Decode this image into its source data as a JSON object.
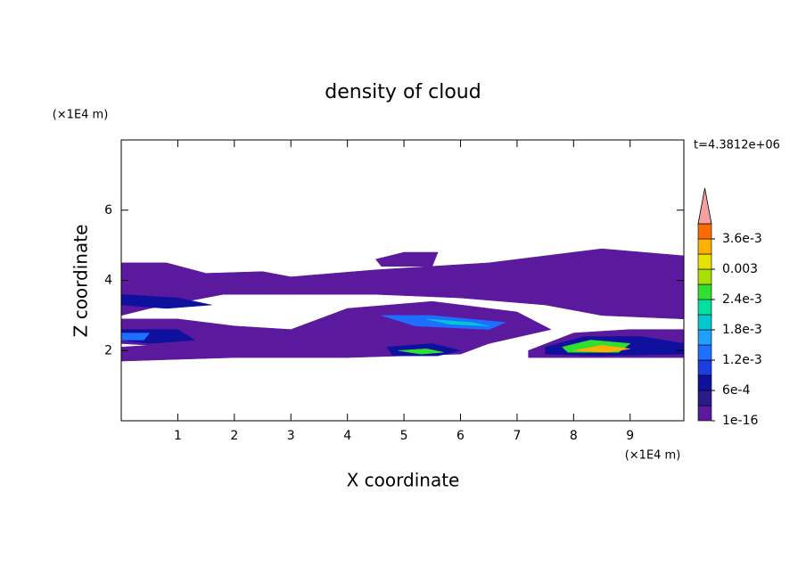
{
  "chart_data": {
    "type": "contour",
    "title": "density of cloud",
    "xlabel": "X coordinate",
    "ylabel": "Z coordinate",
    "xunit": "(×1E4 m)",
    "yunit": "(×1E4 m)",
    "time": "t=4.3812e+06",
    "xlim": [
      0,
      9.95
    ],
    "ylim": [
      0,
      8
    ],
    "xticks": [
      1,
      2,
      3,
      4,
      5,
      6,
      7,
      8,
      9
    ],
    "yticks": [
      2,
      4,
      6
    ],
    "levels": [
      1e-16,
      0.0003,
      0.0006,
      0.0009,
      0.0012,
      0.0015,
      0.0018,
      0.0021,
      0.0024,
      0.0027,
      0.003,
      0.0033,
      0.0036,
      0.0039
    ],
    "colors": [
      "#5b1a9e",
      "#2a1a8c",
      "#10109e",
      "#1a3ce0",
      "#1e6eff",
      "#1ea0ff",
      "#00c8d0",
      "#00e0a0",
      "#30e030",
      "#a8e000",
      "#e8e000",
      "#ffb000",
      "#ff6a00",
      "#f02010"
    ],
    "extend_color": "#f4a0a0",
    "cticks": [
      1e-16,
      {
        "value": 0.0006,
        "label": "6e-4"
      },
      {
        "value": 0.0012,
        "label": "1.2e-3"
      },
      {
        "value": 0.0018,
        "label": "1.8e-3"
      },
      {
        "value": 0.0024,
        "label": "2.4e-3"
      },
      0.003,
      {
        "value": 0.0036,
        "label": "3.6e-3"
      }
    ],
    "regions": [
      {
        "level": 1e-16,
        "x": [
          0,
          0.8,
          1.5,
          2.5,
          3.0,
          4.5,
          6.5,
          7.5,
          8.5,
          9.95,
          9.95,
          8.5,
          7.5,
          6,
          4.5,
          3,
          1.8,
          0.5,
          0
        ],
        "y": [
          4.5,
          4.5,
          4.2,
          4.25,
          4.1,
          4.3,
          4.5,
          4.7,
          4.9,
          4.7,
          2.9,
          3.0,
          3.3,
          3.5,
          3.6,
          3.6,
          3.6,
          3.2,
          3.0
        ]
      },
      {
        "level": 1e-16,
        "x": [
          4.5,
          5.0,
          5.6,
          5.5,
          4.6
        ],
        "y": [
          4.6,
          4.8,
          4.8,
          4.4,
          4.4
        ]
      },
      {
        "level": 1e-16,
        "x": [
          0,
          1,
          2,
          3,
          4,
          5.5,
          7,
          7.6,
          6.5,
          5,
          3,
          2,
          1,
          0
        ],
        "y": [
          2.9,
          2.9,
          2.7,
          2.6,
          3.2,
          3.4,
          3.1,
          2.6,
          2.2,
          2.3,
          2.2,
          2.0,
          2.1,
          2.2
        ]
      },
      {
        "level": 1e-16,
        "x": [
          0,
          1,
          2.5,
          4,
          5,
          6.5,
          6,
          4,
          2,
          0
        ],
        "y": [
          2.1,
          2.2,
          2.3,
          2.3,
          2.3,
          2.2,
          1.9,
          1.8,
          1.8,
          1.7
        ]
      },
      {
        "level": 1e-16,
        "x": [
          7.2,
          8,
          9,
          9.95,
          9.95,
          8.5,
          7.2
        ],
        "y": [
          2.0,
          2.5,
          2.6,
          2.6,
          1.8,
          1.8,
          1.8
        ]
      },
      {
        "level": 0.0006,
        "x": [
          0,
          1.0,
          1.6,
          0.8,
          0
        ],
        "y": [
          3.6,
          3.5,
          3.3,
          3.2,
          3.3
        ]
      },
      {
        "level": 0.0006,
        "x": [
          0,
          1.0,
          1.3,
          0.5,
          0
        ],
        "y": [
          2.6,
          2.6,
          2.3,
          2.2,
          2.3
        ]
      },
      {
        "level": 0.0012,
        "x": [
          0,
          0.5,
          0.4,
          0
        ],
        "y": [
          2.5,
          2.5,
          2.3,
          2.3
        ]
      },
      {
        "level": 0.0012,
        "x": [
          4.6,
          5.5,
          6.8,
          6.5,
          5.2
        ],
        "y": [
          3.0,
          3.0,
          2.8,
          2.6,
          2.7
        ]
      },
      {
        "level": 0.0018,
        "x": [
          5.4,
          6.2,
          6.5,
          5.8
        ],
        "y": [
          2.9,
          2.8,
          2.7,
          2.75
        ]
      },
      {
        "level": 0.0006,
        "x": [
          4.7,
          5.5,
          6.0,
          5.6,
          4.8
        ],
        "y": [
          2.1,
          2.2,
          2.0,
          1.85,
          1.85
        ]
      },
      {
        "level": 0.0024,
        "x": [
          4.9,
          5.4,
          5.7,
          5.3
        ],
        "y": [
          2.0,
          2.05,
          1.95,
          1.9
        ]
      },
      {
        "level": 0.0006,
        "x": [
          7.5,
          8.2,
          9.2,
          9.95,
          9.95,
          8.4,
          7.5
        ],
        "y": [
          2.1,
          2.4,
          2.4,
          2.2,
          1.9,
          1.85,
          1.9
        ]
      },
      {
        "level": 0.0024,
        "x": [
          7.8,
          8.3,
          9.0,
          8.8,
          7.9
        ],
        "y": [
          2.1,
          2.3,
          2.2,
          1.95,
          1.95
        ]
      },
      {
        "level": 0.0033,
        "x": [
          8.0,
          8.5,
          9.0,
          8.6
        ],
        "y": [
          2.0,
          2.15,
          2.05,
          1.95
        ]
      }
    ]
  }
}
